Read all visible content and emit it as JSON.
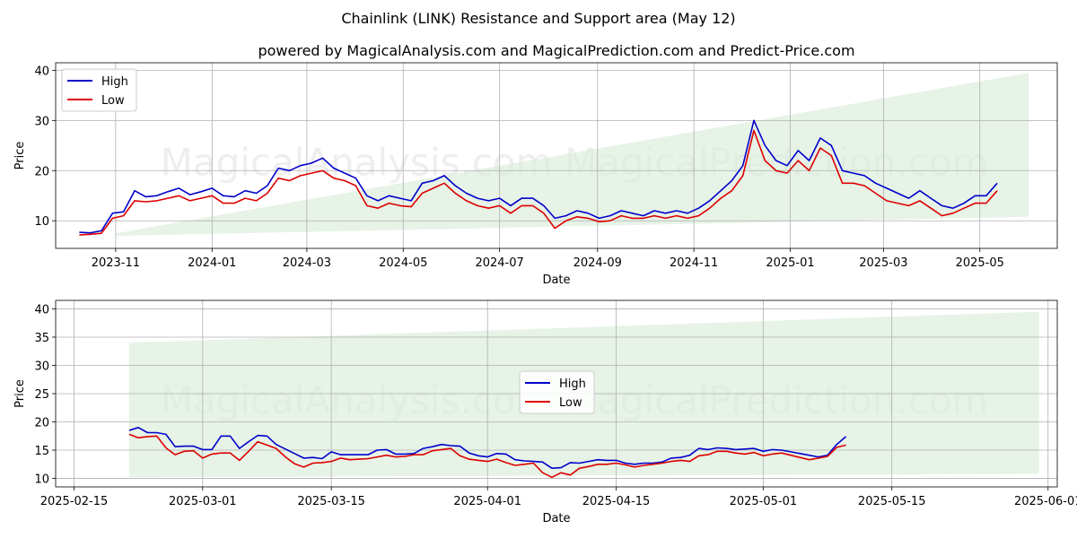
{
  "title": "Chainlink (LINK) Resistance and Support area (May 12)",
  "subtitle": "powered by MagicalAnalysis.com and MagicalPrediction.com and Predict-Price.com",
  "watermark": "MagicalAnalysis.com    MagicalPrediction.com",
  "colors": {
    "high": "#0000cc",
    "low": "#dd0000",
    "band": "#d8ecd8"
  },
  "chart_data": [
    {
      "type": "line",
      "xlabel": "Date",
      "ylabel": "Price",
      "ylim": [
        4.5,
        41.5
      ],
      "xlim": [
        "2023-09-24",
        "2025-06-19"
      ],
      "yticks": [
        10,
        20,
        30,
        40
      ],
      "xticks": [
        "2023-11",
        "2024-01",
        "2024-03",
        "2024-05",
        "2024-07",
        "2024-09",
        "2024-11",
        "2025-01",
        "2025-03",
        "2025-05"
      ],
      "grid": true,
      "legend": "top-left",
      "band": {
        "x": [
          "2023-11-01",
          "2025-06-01"
        ],
        "upper": [
          7.5,
          39.5
        ],
        "lower": [
          7.0,
          10.8
        ]
      },
      "series": [
        {
          "name": "High",
          "x": [
            "2023-10-09",
            "2023-10-16",
            "2023-10-23",
            "2023-10-30",
            "2023-11-06",
            "2023-11-13",
            "2023-11-20",
            "2023-11-27",
            "2023-12-04",
            "2023-12-11",
            "2023-12-18",
            "2023-12-25",
            "2024-01-01",
            "2024-01-08",
            "2024-01-15",
            "2024-01-22",
            "2024-01-29",
            "2024-02-05",
            "2024-02-12",
            "2024-02-19",
            "2024-02-26",
            "2024-03-04",
            "2024-03-11",
            "2024-03-18",
            "2024-03-25",
            "2024-04-01",
            "2024-04-08",
            "2024-04-15",
            "2024-04-22",
            "2024-04-29",
            "2024-05-06",
            "2024-05-13",
            "2024-05-20",
            "2024-05-27",
            "2024-06-03",
            "2024-06-10",
            "2024-06-17",
            "2024-06-24",
            "2024-07-01",
            "2024-07-08",
            "2024-07-15",
            "2024-07-22",
            "2024-07-29",
            "2024-08-05",
            "2024-08-12",
            "2024-08-19",
            "2024-08-26",
            "2024-09-02",
            "2024-09-09",
            "2024-09-16",
            "2024-09-23",
            "2024-09-30",
            "2024-10-07",
            "2024-10-14",
            "2024-10-21",
            "2024-10-28",
            "2024-11-04",
            "2024-11-11",
            "2024-11-18",
            "2024-11-25",
            "2024-12-02",
            "2024-12-09",
            "2024-12-16",
            "2024-12-23",
            "2024-12-30",
            "2025-01-06",
            "2025-01-13",
            "2025-01-20",
            "2025-01-27",
            "2025-02-03",
            "2025-02-10",
            "2025-02-17",
            "2025-02-24",
            "2025-03-03",
            "2025-03-10",
            "2025-03-17",
            "2025-03-24",
            "2025-03-31",
            "2025-04-07",
            "2025-04-14",
            "2025-04-21",
            "2025-04-28",
            "2025-05-05",
            "2025-05-12"
          ],
          "values": [
            7.7,
            7.6,
            8.0,
            11.5,
            11.8,
            16.0,
            14.8,
            15.0,
            15.8,
            16.5,
            15.2,
            15.8,
            16.5,
            15.0,
            14.8,
            16.0,
            15.5,
            17.0,
            20.5,
            20.0,
            21.0,
            21.5,
            22.5,
            20.5,
            19.5,
            18.5,
            15.0,
            14.0,
            15.0,
            14.5,
            14.0,
            17.5,
            18.0,
            19.0,
            17.0,
            15.5,
            14.5,
            14.0,
            14.5,
            13.0,
            14.5,
            14.5,
            13.0,
            10.5,
            11.0,
            12.0,
            11.5,
            10.5,
            11.0,
            12.0,
            11.5,
            11.0,
            12.0,
            11.5,
            12.0,
            11.5,
            12.5,
            14.0,
            16.0,
            18.0,
            21.0,
            30.0,
            25.0,
            22.0,
            21.0,
            24.0,
            22.0,
            26.5,
            25.0,
            20.0,
            19.5,
            19.0,
            17.5,
            16.5,
            15.5,
            14.5,
            16.0,
            14.5,
            13.0,
            12.5,
            13.5,
            15.0,
            15.0,
            17.5
          ]
        },
        {
          "name": "Low",
          "x": [
            "2023-10-09",
            "2023-10-16",
            "2023-10-23",
            "2023-10-30",
            "2023-11-06",
            "2023-11-13",
            "2023-11-20",
            "2023-11-27",
            "2023-12-04",
            "2023-12-11",
            "2023-12-18",
            "2023-12-25",
            "2024-01-01",
            "2024-01-08",
            "2024-01-15",
            "2024-01-22",
            "2024-01-29",
            "2024-02-05",
            "2024-02-12",
            "2024-02-19",
            "2024-02-26",
            "2024-03-04",
            "2024-03-11",
            "2024-03-18",
            "2024-03-25",
            "2024-04-01",
            "2024-04-08",
            "2024-04-15",
            "2024-04-22",
            "2024-04-29",
            "2024-05-06",
            "2024-05-13",
            "2024-05-20",
            "2024-05-27",
            "2024-06-03",
            "2024-06-10",
            "2024-06-17",
            "2024-06-24",
            "2024-07-01",
            "2024-07-08",
            "2024-07-15",
            "2024-07-22",
            "2024-07-29",
            "2024-08-05",
            "2024-08-12",
            "2024-08-19",
            "2024-08-26",
            "2024-09-02",
            "2024-09-09",
            "2024-09-16",
            "2024-09-23",
            "2024-09-30",
            "2024-10-07",
            "2024-10-14",
            "2024-10-21",
            "2024-10-28",
            "2024-11-04",
            "2024-11-11",
            "2024-11-18",
            "2024-11-25",
            "2024-12-02",
            "2024-12-09",
            "2024-12-16",
            "2024-12-23",
            "2024-12-30",
            "2025-01-06",
            "2025-01-13",
            "2025-01-20",
            "2025-01-27",
            "2025-02-03",
            "2025-02-10",
            "2025-02-17",
            "2025-02-24",
            "2025-03-03",
            "2025-03-10",
            "2025-03-17",
            "2025-03-24",
            "2025-03-31",
            "2025-04-07",
            "2025-04-14",
            "2025-04-21",
            "2025-04-28",
            "2025-05-05",
            "2025-05-12"
          ],
          "values": [
            7.2,
            7.3,
            7.5,
            10.5,
            11.0,
            14.0,
            13.8,
            14.0,
            14.5,
            15.0,
            14.0,
            14.5,
            15.0,
            13.5,
            13.5,
            14.5,
            14.0,
            15.5,
            18.5,
            18.0,
            19.0,
            19.5,
            20.0,
            18.5,
            18.0,
            17.0,
            13.0,
            12.5,
            13.5,
            13.0,
            12.8,
            15.5,
            16.5,
            17.5,
            15.5,
            14.0,
            13.0,
            12.5,
            13.0,
            11.5,
            13.0,
            13.0,
            11.5,
            8.5,
            10.0,
            10.8,
            10.5,
            9.8,
            10.0,
            11.0,
            10.5,
            10.5,
            11.0,
            10.5,
            11.0,
            10.5,
            11.0,
            12.5,
            14.5,
            16.0,
            19.0,
            28.0,
            22.0,
            20.0,
            19.5,
            22.0,
            20.0,
            24.5,
            23.0,
            17.5,
            17.5,
            17.0,
            15.5,
            14.0,
            13.5,
            13.0,
            14.0,
            12.5,
            11.0,
            11.5,
            12.5,
            13.5,
            13.5,
            16.0
          ]
        }
      ]
    },
    {
      "type": "line",
      "xlabel": "Date",
      "ylabel": "Price",
      "ylim": [
        8.5,
        41.5
      ],
      "xlim": [
        "2025-02-13",
        "2025-06-02"
      ],
      "yticks": [
        10,
        15,
        20,
        25,
        30,
        35,
        40
      ],
      "xticks": [
        "2025-02-15",
        "2025-03-01",
        "2025-03-15",
        "2025-04-01",
        "2025-04-15",
        "2025-05-01",
        "2025-05-15",
        "2025-06-01"
      ],
      "grid": true,
      "legend": "center",
      "band": {
        "x": [
          "2025-02-21",
          "2025-05-31"
        ],
        "upper": [
          34.0,
          39.5
        ],
        "lower": [
          10.2,
          10.8
        ]
      },
      "series": [
        {
          "name": "High",
          "x": [
            "2025-02-21",
            "2025-02-22",
            "2025-02-23",
            "2025-02-24",
            "2025-02-25",
            "2025-02-26",
            "2025-02-27",
            "2025-02-28",
            "2025-03-01",
            "2025-03-02",
            "2025-03-03",
            "2025-03-04",
            "2025-03-05",
            "2025-03-06",
            "2025-03-07",
            "2025-03-08",
            "2025-03-09",
            "2025-03-10",
            "2025-03-11",
            "2025-03-12",
            "2025-03-13",
            "2025-03-14",
            "2025-03-15",
            "2025-03-16",
            "2025-03-17",
            "2025-03-18",
            "2025-03-19",
            "2025-03-20",
            "2025-03-21",
            "2025-03-22",
            "2025-03-23",
            "2025-03-24",
            "2025-03-25",
            "2025-03-26",
            "2025-03-27",
            "2025-03-28",
            "2025-03-29",
            "2025-03-30",
            "2025-03-31",
            "2025-04-01",
            "2025-04-02",
            "2025-04-03",
            "2025-04-04",
            "2025-04-05",
            "2025-04-06",
            "2025-04-07",
            "2025-04-08",
            "2025-04-09",
            "2025-04-10",
            "2025-04-11",
            "2025-04-12",
            "2025-04-13",
            "2025-04-14",
            "2025-04-15",
            "2025-04-16",
            "2025-04-17",
            "2025-04-18",
            "2025-04-19",
            "2025-04-20",
            "2025-04-21",
            "2025-04-22",
            "2025-04-23",
            "2025-04-24",
            "2025-04-25",
            "2025-04-26",
            "2025-04-27",
            "2025-04-28",
            "2025-04-29",
            "2025-04-30",
            "2025-05-01",
            "2025-05-02",
            "2025-05-03",
            "2025-05-04",
            "2025-05-05",
            "2025-05-06",
            "2025-05-07",
            "2025-05-08",
            "2025-05-09",
            "2025-05-10"
          ],
          "values": [
            18.5,
            19.0,
            18.1,
            18.1,
            17.8,
            15.6,
            15.7,
            15.7,
            15.1,
            15.1,
            17.5,
            17.5,
            15.3,
            16.5,
            17.6,
            17.5,
            16.0,
            15.2,
            14.4,
            13.6,
            13.7,
            13.5,
            14.7,
            14.2,
            14.2,
            14.2,
            14.2,
            15.0,
            15.1,
            14.3,
            14.3,
            14.4,
            15.3,
            15.6,
            16.0,
            15.8,
            15.7,
            14.5,
            14.0,
            13.8,
            14.4,
            14.3,
            13.3,
            13.1,
            13.0,
            12.9,
            11.8,
            11.9,
            12.8,
            12.7,
            13.0,
            13.3,
            13.2,
            13.2,
            12.7,
            12.5,
            12.7,
            12.7,
            12.9,
            13.6,
            13.7,
            14.1,
            15.3,
            15.1,
            15.4,
            15.3,
            15.1,
            15.2,
            15.3,
            14.8,
            15.1,
            15.0,
            14.7,
            14.4,
            14.1,
            13.8,
            14.1,
            16.0,
            17.4
          ]
        },
        {
          "name": "Low",
          "x": [
            "2025-02-21",
            "2025-02-22",
            "2025-02-23",
            "2025-02-24",
            "2025-02-25",
            "2025-02-26",
            "2025-02-27",
            "2025-02-28",
            "2025-03-01",
            "2025-03-02",
            "2025-03-03",
            "2025-03-04",
            "2025-03-05",
            "2025-03-06",
            "2025-03-07",
            "2025-03-08",
            "2025-03-09",
            "2025-03-10",
            "2025-03-11",
            "2025-03-12",
            "2025-03-13",
            "2025-03-14",
            "2025-03-15",
            "2025-03-16",
            "2025-03-17",
            "2025-03-18",
            "2025-03-19",
            "2025-03-20",
            "2025-03-21",
            "2025-03-22",
            "2025-03-23",
            "2025-03-24",
            "2025-03-25",
            "2025-03-26",
            "2025-03-27",
            "2025-03-28",
            "2025-03-29",
            "2025-03-30",
            "2025-03-31",
            "2025-04-01",
            "2025-04-02",
            "2025-04-03",
            "2025-04-04",
            "2025-04-05",
            "2025-04-06",
            "2025-04-07",
            "2025-04-08",
            "2025-04-09",
            "2025-04-10",
            "2025-04-11",
            "2025-04-12",
            "2025-04-13",
            "2025-04-14",
            "2025-04-15",
            "2025-04-16",
            "2025-04-17",
            "2025-04-18",
            "2025-04-19",
            "2025-04-20",
            "2025-04-21",
            "2025-04-22",
            "2025-04-23",
            "2025-04-24",
            "2025-04-25",
            "2025-04-26",
            "2025-04-27",
            "2025-04-28",
            "2025-04-29",
            "2025-04-30",
            "2025-05-01",
            "2025-05-02",
            "2025-05-03",
            "2025-05-04",
            "2025-05-05",
            "2025-05-06",
            "2025-05-07",
            "2025-05-08",
            "2025-05-09",
            "2025-05-10"
          ],
          "values": [
            17.8,
            17.2,
            17.4,
            17.5,
            15.4,
            14.2,
            14.8,
            14.9,
            13.6,
            14.3,
            14.5,
            14.5,
            13.2,
            14.8,
            16.5,
            15.9,
            15.3,
            13.8,
            12.6,
            12.0,
            12.7,
            12.8,
            13.0,
            13.6,
            13.3,
            13.4,
            13.5,
            13.8,
            14.1,
            13.8,
            13.9,
            14.2,
            14.2,
            14.9,
            15.1,
            15.3,
            14.0,
            13.4,
            13.2,
            13.0,
            13.4,
            12.8,
            12.3,
            12.5,
            12.7,
            11.0,
            10.2,
            11.0,
            10.6,
            11.8,
            12.1,
            12.5,
            12.5,
            12.7,
            12.4,
            12.0,
            12.3,
            12.5,
            12.7,
            13.0,
            13.2,
            13.0,
            14.0,
            14.2,
            14.8,
            14.8,
            14.5,
            14.3,
            14.6,
            14.0,
            14.3,
            14.5,
            14.1,
            13.7,
            13.3,
            13.6,
            13.9,
            15.5,
            15.9
          ]
        }
      ]
    }
  ]
}
